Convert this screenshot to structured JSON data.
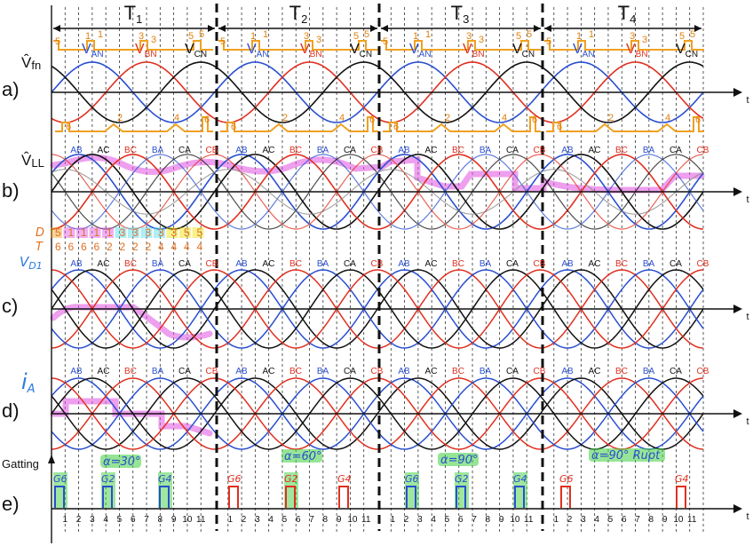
{
  "periods": [
    {
      "main": "T",
      "sub": "1"
    },
    {
      "main": "T",
      "sub": "2"
    },
    {
      "main": "T",
      "sub": "3"
    },
    {
      "main": "T",
      "sub": "4"
    }
  ],
  "row_labels": [
    "a)",
    "b)",
    "c)",
    "d)",
    "e)"
  ],
  "axis_labels": {
    "a": {
      "main": "V̂",
      "sub": "fn"
    },
    "b": {
      "main": "V̂",
      "sub": "LL"
    },
    "c": {
      "main": "V",
      "sub": "D1"
    },
    "d": {
      "main": "i",
      "sub": "A"
    },
    "e": "Gatting",
    "t": "t"
  },
  "phase_labels": [
    {
      "main": "V",
      "sub": "AN",
      "num": "1"
    },
    {
      "main": "V",
      "sub": "BN",
      "num": "3"
    },
    {
      "main": "V",
      "sub": "CN",
      "num": "5"
    }
  ],
  "line_labels": [
    "AB",
    "AC",
    "BC",
    "BA",
    "CA",
    "CB"
  ],
  "line_label_colors": [
    "#2a4fd0",
    "#111111",
    "#e03020",
    "#2a4fd0",
    "#111111",
    "#e03020"
  ],
  "ticks": [
    "1",
    "2",
    "3",
    "4",
    "5",
    "6",
    "7",
    "8",
    "9",
    "10",
    "11"
  ],
  "dt_table": {
    "d_label": "D",
    "t_label": "T",
    "d_values": [
      "5",
      "1",
      "1",
      "1",
      "1",
      "3",
      "3",
      "3",
      "3",
      "3",
      "5",
      "5"
    ],
    "t_values": [
      "6",
      "6",
      "6",
      "6",
      "2",
      "2",
      "2",
      "2",
      "4",
      "4",
      "4",
      "4"
    ]
  },
  "annotations": {
    "upper_numbers": [
      "5",
      "1",
      "3",
      "5"
    ],
    "lower_numbers": [
      "6",
      "2",
      "4",
      "6"
    ],
    "alphas": [
      "α=30°",
      "α=60°",
      "α=90°",
      "α=90° Rupt"
    ]
  },
  "gates": [
    [
      "G6",
      "G2",
      "G4"
    ],
    [
      "G6",
      "G2",
      "G4"
    ],
    [
      "G6",
      "G2",
      "G4"
    ],
    [
      "G6",
      "G4"
    ]
  ],
  "colors": {
    "phase_a": "#2a4fd0",
    "phase_b": "#e03020",
    "phase_c": "#111111",
    "orange": "#f0a020",
    "magenta": "#e050e0",
    "green": "#40d040",
    "cyan": "#50d8e8",
    "yellow": "#f0e000",
    "grey": "#888888"
  }
}
